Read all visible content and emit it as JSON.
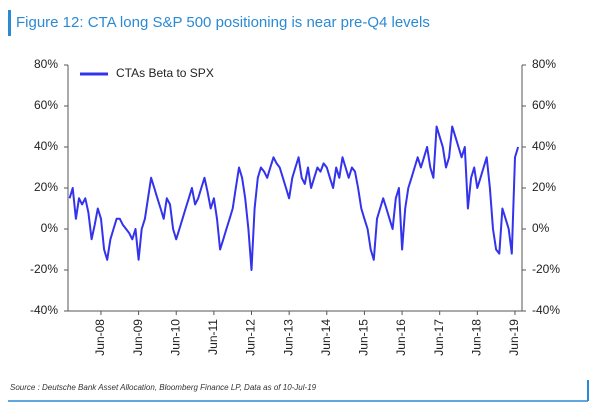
{
  "chart_data": {
    "type": "line",
    "title": "Figure 12: CTA long S&P 500 positioning is near pre-Q4 levels",
    "source": "Source : Deutsche Bank Asset Allocation, Bloomberg Finance LP, Data as of 10-Jul-19",
    "categories": [
      null,
      null,
      null,
      null,
      null,
      null,
      null,
      null,
      null,
      null,
      "Jun-08",
      null,
      null,
      null,
      null,
      null,
      null,
      null,
      null,
      null,
      null,
      null,
      "Jun-09",
      null,
      null,
      null,
      null,
      null,
      null,
      null,
      null,
      null,
      null,
      null,
      "Jun-10",
      null,
      null,
      null,
      null,
      null,
      null,
      null,
      null,
      null,
      null,
      null,
      "Jun-11",
      null,
      null,
      null,
      null,
      null,
      null,
      null,
      null,
      null,
      null,
      null,
      "Jun-12",
      null,
      null,
      null,
      null,
      null,
      null,
      null,
      null,
      null,
      null,
      null,
      "Jun-13",
      null,
      null,
      null,
      null,
      null,
      null,
      null,
      null,
      null,
      null,
      null,
      "Jun-14",
      null,
      null,
      null,
      null,
      null,
      null,
      null,
      null,
      null,
      null,
      null,
      "Jun-15",
      null,
      null,
      null,
      null,
      null,
      null,
      null,
      null,
      null,
      null,
      null,
      "Jun-16",
      null,
      null,
      null,
      null,
      null,
      null,
      null,
      null,
      null,
      null,
      null,
      "Jun-17",
      null,
      null,
      null,
      null,
      null,
      null,
      null,
      null,
      null,
      null,
      null,
      "Jun-18",
      null,
      null,
      null,
      null,
      null,
      null,
      null,
      null,
      null,
      null,
      null,
      "Jun-19",
      null
    ],
    "series": [
      {
        "name": "CTAs Beta to SPX",
        "color": "#3333ee",
        "values": [
          15,
          20,
          5,
          15,
          12,
          15,
          8,
          -5,
          2,
          10,
          5,
          -10,
          -15,
          -5,
          0,
          5,
          5,
          2,
          0,
          -2,
          -5,
          0,
          -15,
          0,
          5,
          15,
          25,
          20,
          15,
          10,
          5,
          15,
          12,
          0,
          -5,
          0,
          5,
          10,
          15,
          20,
          12,
          15,
          20,
          25,
          18,
          10,
          15,
          5,
          -10,
          -5,
          0,
          5,
          10,
          20,
          30,
          25,
          15,
          0,
          -20,
          10,
          25,
          30,
          28,
          25,
          30,
          35,
          32,
          30,
          25,
          20,
          15,
          25,
          30,
          35,
          25,
          22,
          30,
          20,
          25,
          30,
          28,
          32,
          30,
          25,
          20,
          30,
          25,
          35,
          30,
          25,
          30,
          28,
          20,
          10,
          5,
          0,
          -10,
          -15,
          5,
          10,
          15,
          10,
          5,
          0,
          15,
          20,
          -10,
          10,
          20,
          25,
          30,
          35,
          30,
          35,
          40,
          30,
          25,
          50,
          45,
          40,
          30,
          35,
          50,
          45,
          40,
          35,
          40,
          10,
          25,
          30,
          20,
          25,
          30,
          35,
          20,
          0,
          -10,
          -12,
          10,
          5,
          0,
          -12,
          35,
          40
        ]
      }
    ],
    "ylim": [
      -40,
      80
    ],
    "yticks": [
      {
        "value": -40,
        "label": "-40%"
      },
      {
        "value": -20,
        "label": "-20%"
      },
      {
        "value": 0,
        "label": "0%"
      },
      {
        "value": 20,
        "label": "20%"
      },
      {
        "value": 40,
        "label": "40%"
      },
      {
        "value": 60,
        "label": "60%"
      },
      {
        "value": 80,
        "label": "80%"
      }
    ],
    "y2lim": [
      -40,
      80
    ],
    "y2ticks": [
      {
        "value": -40,
        "label": "-40%"
      },
      {
        "value": -20,
        "label": "-20%"
      },
      {
        "value": 0,
        "label": "0%"
      },
      {
        "value": 20,
        "label": "20%"
      },
      {
        "value": 40,
        "label": "40%"
      },
      {
        "value": 60,
        "label": "60%"
      },
      {
        "value": 80,
        "label": "80%"
      }
    ],
    "legend": "upper-left"
  }
}
